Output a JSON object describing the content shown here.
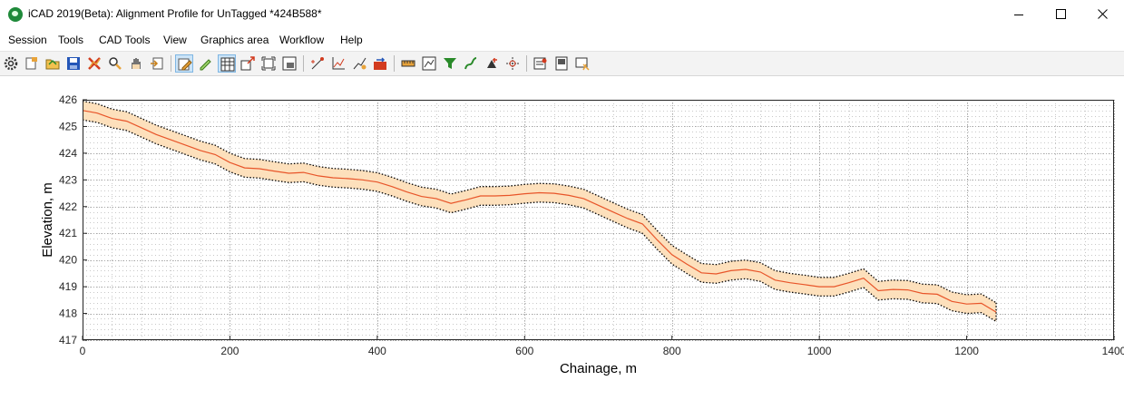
{
  "window": {
    "title": "iCAD 2019(Beta): Alignment Profile for UnTagged *424B588*",
    "controls": [
      "minimize",
      "maximize",
      "close"
    ]
  },
  "menu": [
    "Session",
    "Tools",
    "CAD Tools",
    "View",
    "Graphics area",
    "Workflow",
    "Help"
  ],
  "toolbar": {
    "groups": [
      [
        "settings-icon",
        "open-file-icon",
        "folder-icon",
        "save-icon",
        "delete-icon",
        "zoom-icon",
        "pan-hand-icon",
        "export-icon"
      ],
      [
        "edit-icon",
        "pencil-icon",
        "grid-table-icon",
        "resize-icon",
        "fit-window-icon",
        "print-preview-icon"
      ],
      [
        "add-point-icon",
        "profile-icon",
        "auto-profile-icon",
        "data-export-icon"
      ],
      [
        "ruler-icon",
        "chart-window-icon",
        "filter-icon",
        "curve-tool-icon",
        "snap-icon",
        "crosshair-icon"
      ],
      [
        "report-icon",
        "notes-icon",
        "properties-icon"
      ]
    ],
    "active": [
      "edit-icon",
      "grid-table-icon"
    ]
  },
  "chart_data": {
    "type": "line",
    "xlabel": "Chainage, m",
    "ylabel": "Elevation, m",
    "xlim": [
      0,
      1400
    ],
    "ylim": [
      417,
      426
    ],
    "xticks": [
      0,
      200,
      400,
      600,
      800,
      1000,
      1200,
      1400
    ],
    "yticks": [
      417,
      418,
      419,
      420,
      421,
      422,
      423,
      424,
      425,
      426
    ],
    "grid": "minor dotted",
    "series": [
      {
        "color": "#e8552a",
        "band_color": "#fde0bc",
        "band_halfwidth": 0.35,
        "x": [
          0,
          10,
          20,
          30,
          40,
          50,
          60,
          80,
          100,
          120,
          140,
          160,
          180,
          200,
          220,
          240,
          260,
          280,
          300,
          320,
          340,
          360,
          380,
          400,
          420,
          440,
          460,
          480,
          500,
          520,
          540,
          560,
          580,
          600,
          620,
          640,
          660,
          680,
          700,
          720,
          740,
          760,
          780,
          800,
          820,
          840,
          860,
          880,
          900,
          920,
          940,
          960,
          980,
          1000,
          1020,
          1040,
          1060,
          1080,
          1100,
          1120,
          1140,
          1160,
          1180,
          1200,
          1220,
          1240
        ],
        "y": [
          425.6,
          425.55,
          425.5,
          425.4,
          425.3,
          425.25,
          425.2,
          424.95,
          424.7,
          424.5,
          424.3,
          424.1,
          423.95,
          423.65,
          423.45,
          423.42,
          423.33,
          423.25,
          423.28,
          423.15,
          423.08,
          423.05,
          423.0,
          422.92,
          422.75,
          422.55,
          422.38,
          422.3,
          422.12,
          422.25,
          422.4,
          422.4,
          422.42,
          422.48,
          422.52,
          422.5,
          422.42,
          422.3,
          422.05,
          421.8,
          421.55,
          421.35,
          420.75,
          420.2,
          419.85,
          419.52,
          419.48,
          419.6,
          419.65,
          419.55,
          419.25,
          419.15,
          419.08,
          419.0,
          419.0,
          419.15,
          419.32,
          418.85,
          418.9,
          418.88,
          418.75,
          418.72,
          418.45,
          418.35,
          418.38,
          418.05
        ]
      }
    ]
  }
}
